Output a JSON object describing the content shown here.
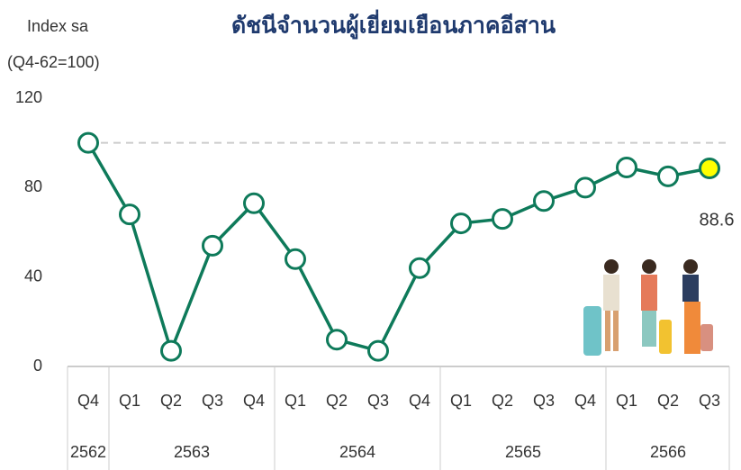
{
  "chart_data": {
    "type": "line",
    "title": "ดัชนีจำนวนผู้เยี่ยมเยือนภาคอีสาน",
    "ylabel": [
      "Index sa",
      "(Q4-62=100)"
    ],
    "groups": [
      {
        "label": "2562",
        "quarters": [
          "Q4"
        ]
      },
      {
        "label": "2563",
        "quarters": [
          "Q1",
          "Q2",
          "Q3",
          "Q4"
        ]
      },
      {
        "label": "2564",
        "quarters": [
          "Q1",
          "Q2",
          "Q3",
          "Q4"
        ]
      },
      {
        "label": "2565",
        "quarters": [
          "Q1",
          "Q2",
          "Q3",
          "Q4"
        ]
      },
      {
        "label": "2566",
        "quarters": [
          "Q1",
          "Q2",
          "Q3"
        ]
      }
    ],
    "values": [
      100,
      68,
      7,
      54,
      73,
      48,
      12,
      7,
      44,
      64,
      66,
      74,
      80,
      89,
      85,
      88.6
    ],
    "color": "#0e7a5a",
    "highlight_color": "#ffff00",
    "reference_line": 100,
    "ylim": [
      0,
      120
    ],
    "yticks": [
      0,
      40,
      80,
      120
    ]
  }
}
